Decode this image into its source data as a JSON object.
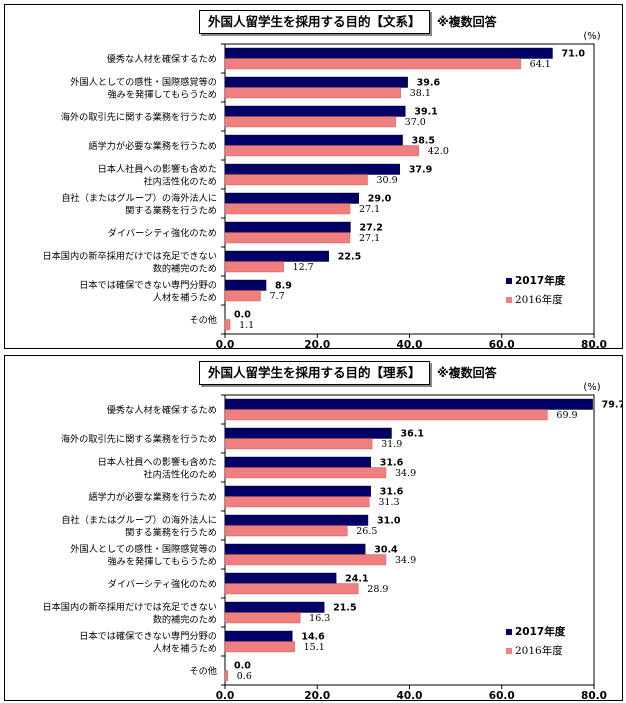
{
  "chart_data": [
    {
      "type": "bar",
      "title": "外国人留学生を採用する目的【文系】",
      "note": "※複数回答",
      "unit": "(%)",
      "categories": [
        [
          "優秀な人材を確保するため"
        ],
        [
          "外国人としての感性・国際感覚等の",
          "強みを発揮してもらうため"
        ],
        [
          "海外の取引先に関する業務を行うため"
        ],
        [
          "語学力が必要な業務を行うため"
        ],
        [
          "日本人社員への影響も含めた",
          "社内活性化のため"
        ],
        [
          "自社（またはグループ）の海外法人に",
          "関する業務を行うため"
        ],
        [
          "ダイバーシティ強化のため"
        ],
        [
          "日本国内の新卒採用だけでは充足できない",
          "数的補完のため"
        ],
        [
          "日本では確保できない専門分野の",
          "人材を補うため"
        ],
        [
          "その他"
        ]
      ],
      "series": [
        {
          "name": "2017年度",
          "color": "#000066",
          "values": [
            71.0,
            39.6,
            39.1,
            38.5,
            37.9,
            29.0,
            27.2,
            22.5,
            8.9,
            0.0
          ]
        },
        {
          "name": "2016年度",
          "color": "#f08080",
          "values": [
            64.1,
            38.1,
            37.0,
            42.0,
            30.9,
            27.1,
            27.1,
            12.7,
            7.7,
            1.1
          ]
        }
      ],
      "xlim": [
        0,
        80
      ],
      "xticks": [
        "0.0",
        "20.0",
        "40.0",
        "60.0",
        "80.0"
      ],
      "legend": "bottom-right"
    },
    {
      "type": "bar",
      "title": "外国人留学生を採用する目的【理系】",
      "note": "※複数回答",
      "unit": "(%)",
      "categories": [
        [
          "優秀な人材を確保するため"
        ],
        [
          "海外の取引先に関する業務を行うため"
        ],
        [
          "日本人社員への影響も含めた",
          "社内活性化のため"
        ],
        [
          "語学力が必要な業務を行うため"
        ],
        [
          "自社（またはグループ）の海外法人に",
          "関する業務を行うため"
        ],
        [
          "外国人としての感性・国際感覚等の",
          "強みを発揮してもらうため"
        ],
        [
          "ダイバーシティ強化のため"
        ],
        [
          "日本国内の新卒採用だけでは充足できない",
          "数的補完のため"
        ],
        [
          "日本では確保できない専門分野の",
          "人材を補うため"
        ],
        [
          "その他"
        ]
      ],
      "series": [
        {
          "name": "2017年度",
          "color": "#000066",
          "values": [
            79.7,
            36.1,
            31.6,
            31.6,
            31.0,
            30.4,
            24.1,
            21.5,
            14.6,
            0.0
          ]
        },
        {
          "name": "2016年度",
          "color": "#f08080",
          "values": [
            69.9,
            31.9,
            34.9,
            31.3,
            26.5,
            34.9,
            28.9,
            16.3,
            15.1,
            0.6
          ]
        }
      ],
      "xlim": [
        0,
        80
      ],
      "xticks": [
        "0.0",
        "20.0",
        "40.0",
        "60.0",
        "80.0"
      ],
      "legend": "bottom-right"
    }
  ]
}
